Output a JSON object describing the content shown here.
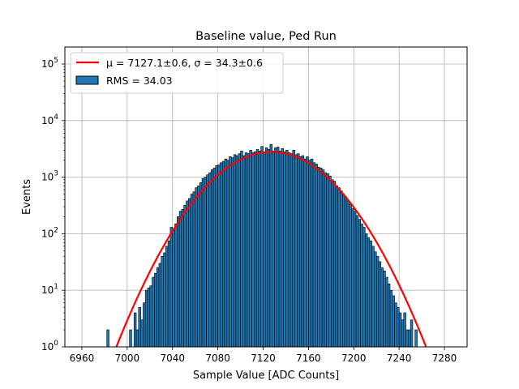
{
  "chart_data": {
    "type": "bar",
    "title": "Baseline value, Ped Run",
    "xlabel": "Sample Value [ADC Counts]",
    "ylabel": "Events",
    "xlim": [
      6945,
      6300
    ],
    "ylim": [
      1,
      200000
    ],
    "yscale": "log",
    "grid": true,
    "legend_position": "top-left",
    "x_ticks": [
      "6960",
      "7000",
      "7040",
      "7080",
      "7120",
      "7160",
      "7200",
      "7240",
      "7280"
    ],
    "y_ticks": [
      {
        "value": 1,
        "base": "10",
        "exp": "0"
      },
      {
        "value": 10,
        "base": "10",
        "exp": "1"
      },
      {
        "value": 100,
        "base": "10",
        "exp": "2"
      },
      {
        "value": 1000,
        "base": "10",
        "exp": "3"
      },
      {
        "value": 10000,
        "base": "10",
        "exp": "4"
      },
      {
        "value": 100000,
        "base": "10",
        "exp": "5"
      }
    ],
    "legend": {
      "fit_label": "μ = 7127.1±0.6, σ = 34.3±0.6",
      "hist_label": "RMS = 34.03"
    },
    "series": [
      {
        "name": "RMS = 34.03",
        "kind": "histogram",
        "color": "#1f77b4",
        "edgecolor": "#000000",
        "bins": [
          [
            6982,
            2
          ],
          [
            6984,
            1
          ],
          [
            6988,
            1
          ],
          [
            6992,
            1
          ],
          [
            6994,
            1
          ],
          [
            6996,
            1
          ],
          [
            6998,
            1
          ],
          [
            7000,
            1
          ],
          [
            7002,
            2
          ],
          [
            7004,
            1
          ],
          [
            7006,
            4
          ],
          [
            7008,
            2
          ],
          [
            7010,
            5
          ],
          [
            7012,
            3
          ],
          [
            7014,
            6
          ],
          [
            7016,
            10
          ],
          [
            7018,
            11
          ],
          [
            7020,
            12
          ],
          [
            7022,
            17
          ],
          [
            7024,
            20
          ],
          [
            7026,
            25
          ],
          [
            7028,
            30
          ],
          [
            7030,
            40
          ],
          [
            7032,
            46
          ],
          [
            7034,
            60
          ],
          [
            7036,
            75
          ],
          [
            7038,
            130
          ],
          [
            7040,
            115
          ],
          [
            7042,
            150
          ],
          [
            7044,
            200
          ],
          [
            7046,
            250
          ],
          [
            7048,
            270
          ],
          [
            7050,
            320
          ],
          [
            7052,
            380
          ],
          [
            7054,
            420
          ],
          [
            7056,
            500
          ],
          [
            7058,
            550
          ],
          [
            7060,
            650
          ],
          [
            7062,
            700
          ],
          [
            7064,
            800
          ],
          [
            7066,
            950
          ],
          [
            7068,
            1000
          ],
          [
            7070,
            1100
          ],
          [
            7072,
            1200
          ],
          [
            7074,
            1350
          ],
          [
            7076,
            1450
          ],
          [
            7078,
            1600
          ],
          [
            7080,
            1650
          ],
          [
            7082,
            1800
          ],
          [
            7084,
            1900
          ],
          [
            7086,
            2100
          ],
          [
            7088,
            2000
          ],
          [
            7090,
            2300
          ],
          [
            7092,
            2200
          ],
          [
            7094,
            2500
          ],
          [
            7096,
            2400
          ],
          [
            7098,
            2600
          ],
          [
            7100,
            2900
          ],
          [
            7102,
            2400
          ],
          [
            7104,
            2700
          ],
          [
            7106,
            2600
          ],
          [
            7108,
            3000
          ],
          [
            7110,
            2700
          ],
          [
            7112,
            2800
          ],
          [
            7114,
            3100
          ],
          [
            7116,
            2900
          ],
          [
            7118,
            3500
          ],
          [
            7120,
            2800
          ],
          [
            7122,
            3300
          ],
          [
            7124,
            3100
          ],
          [
            7126,
            3800
          ],
          [
            7128,
            2900
          ],
          [
            7130,
            3300
          ],
          [
            7132,
            3400
          ],
          [
            7134,
            2900
          ],
          [
            7136,
            3200
          ],
          [
            7138,
            2800
          ],
          [
            7140,
            3000
          ],
          [
            7142,
            2700
          ],
          [
            7144,
            2600
          ],
          [
            7146,
            3000
          ],
          [
            7148,
            2500
          ],
          [
            7150,
            2600
          ],
          [
            7152,
            2300
          ],
          [
            7154,
            2400
          ],
          [
            7156,
            2100
          ],
          [
            7158,
            2300
          ],
          [
            7160,
            2000
          ],
          [
            7162,
            2100
          ],
          [
            7164,
            1800
          ],
          [
            7166,
            1700
          ],
          [
            7168,
            1500
          ],
          [
            7170,
            1450
          ],
          [
            7172,
            1350
          ],
          [
            7174,
            1200
          ],
          [
            7176,
            1150
          ],
          [
            7178,
            1050
          ],
          [
            7180,
            900
          ],
          [
            7182,
            850
          ],
          [
            7184,
            700
          ],
          [
            7186,
            650
          ],
          [
            7188,
            570
          ],
          [
            7190,
            500
          ],
          [
            7192,
            450
          ],
          [
            7194,
            380
          ],
          [
            7196,
            330
          ],
          [
            7198,
            280
          ],
          [
            7200,
            250
          ],
          [
            7202,
            210
          ],
          [
            7204,
            180
          ],
          [
            7206,
            150
          ],
          [
            7208,
            130
          ],
          [
            7210,
            100
          ],
          [
            7212,
            85
          ],
          [
            7214,
            75
          ],
          [
            7216,
            60
          ],
          [
            7218,
            48
          ],
          [
            7220,
            40
          ],
          [
            7222,
            32
          ],
          [
            7224,
            25
          ],
          [
            7226,
            22
          ],
          [
            7228,
            17
          ],
          [
            7230,
            13
          ],
          [
            7232,
            10
          ],
          [
            7234,
            8
          ],
          [
            7236,
            6
          ],
          [
            7238,
            5
          ],
          [
            7240,
            4
          ],
          [
            7242,
            3
          ],
          [
            7244,
            4
          ],
          [
            7246,
            2
          ],
          [
            7248,
            2
          ],
          [
            7250,
            3
          ],
          [
            7252,
            1
          ],
          [
            7254,
            2
          ],
          [
            7256,
            1
          ],
          [
            7258,
            1
          ]
        ]
      },
      {
        "name": "μ = 7127.1±0.6, σ = 34.3±0.6",
        "kind": "gaussian_fit",
        "color": "#ff0000",
        "mu": 7127.1,
        "sigma": 34.3,
        "amplitude": 2800
      }
    ]
  }
}
